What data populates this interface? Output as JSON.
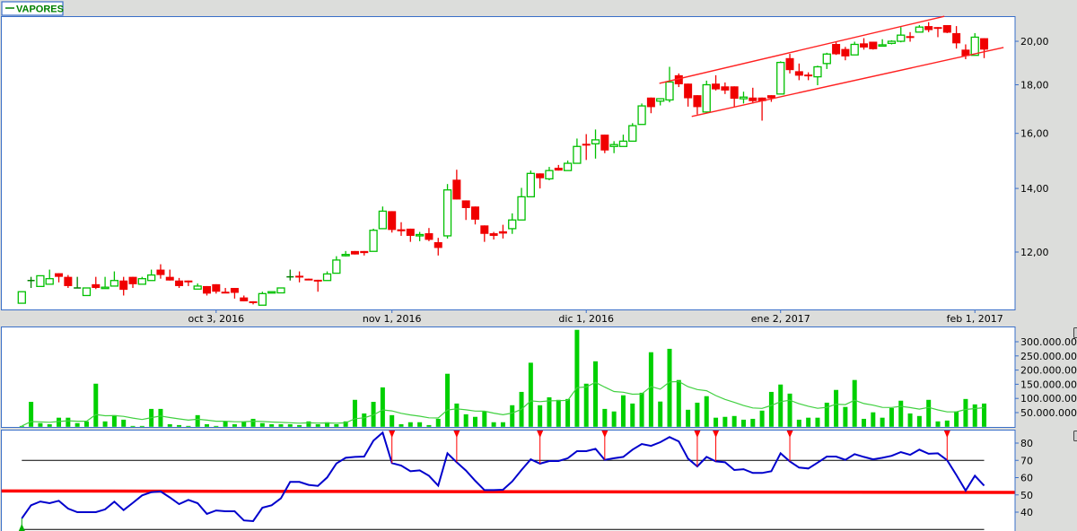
{
  "legend": {
    "label": "VAPORES",
    "color": "#008000"
  },
  "colors": {
    "up": "#00c000",
    "doji": "#008000",
    "down": "#f00000",
    "panel_border": "#3a6fc8",
    "background": "#dcdddb",
    "rsi_line": "#0000cc",
    "volume_bar": "#00d000",
    "volume_ma": "#40d040",
    "trendline": "#ff2020"
  },
  "chart_data": [
    {
      "type": "candlestick",
      "title": "",
      "y_scale": "log",
      "ylim": [
        10.4,
        21.3
      ],
      "grid": false,
      "legend": "top-left",
      "y_ticks": [
        {
          "value": 12,
          "label": "12,00"
        },
        {
          "value": 14,
          "label": "14,00"
        },
        {
          "value": 16,
          "label": "16,00"
        },
        {
          "value": 18,
          "label": "18,00"
        },
        {
          "value": 20,
          "label": "20,00"
        }
      ],
      "x_ticks": [
        {
          "bar": 22,
          "label": "oct 3, 2016"
        },
        {
          "bar": 41,
          "label": "nov 1, 2016"
        },
        {
          "bar": 62,
          "label": "dic 1, 2016"
        },
        {
          "bar": 83,
          "label": "ene 2, 2017"
        },
        {
          "bar": 104,
          "label": "feb 1, 2017"
        }
      ],
      "ohlc_fields": [
        "open",
        "high",
        "low",
        "close"
      ],
      "ohlc": [
        [
          10.6,
          10.9,
          10.6,
          10.9
        ],
        [
          11.2,
          11.3,
          11.0,
          11.2
        ],
        [
          11.04,
          11.33,
          11.04,
          11.33
        ],
        [
          11.1,
          11.5,
          11.1,
          11.25
        ],
        [
          11.4,
          11.4,
          11.15,
          11.3
        ],
        [
          11.3,
          11.35,
          11.0,
          11.05
        ],
        [
          11.0,
          11.3,
          11.0,
          11.0
        ],
        [
          10.8,
          11.0,
          10.8,
          11.0
        ],
        [
          11.1,
          11.3,
          10.97,
          11.0
        ],
        [
          11.0,
          11.3,
          11.0,
          11.02
        ],
        [
          11.05,
          11.45,
          11.05,
          11.2
        ],
        [
          11.2,
          11.3,
          10.8,
          10.95
        ],
        [
          11.3,
          11.3,
          11.0,
          11.1
        ],
        [
          11.1,
          11.3,
          11.1,
          11.25
        ],
        [
          11.2,
          11.5,
          11.2,
          11.35
        ],
        [
          11.5,
          11.65,
          11.25,
          11.35
        ],
        [
          11.3,
          11.5,
          11.2,
          11.2
        ],
        [
          11.2,
          11.27,
          11.0,
          11.05
        ],
        [
          11.2,
          11.2,
          11.05,
          11.15
        ],
        [
          10.97,
          11.12,
          10.97,
          11.05
        ],
        [
          11.05,
          11.05,
          10.8,
          10.85
        ],
        [
          11.1,
          11.1,
          10.85,
          10.9
        ],
        [
          10.9,
          11.0,
          10.87,
          10.87
        ],
        [
          11.0,
          11.0,
          10.72,
          10.87
        ],
        [
          10.75,
          10.8,
          10.65,
          10.65
        ],
        [
          10.65,
          10.65,
          10.57,
          10.62
        ],
        [
          10.55,
          10.9,
          10.55,
          10.85
        ],
        [
          10.87,
          10.9,
          10.87,
          10.9
        ],
        [
          10.87,
          11.0,
          10.87,
          11.0
        ],
        [
          11.3,
          11.5,
          11.2,
          11.3
        ],
        [
          11.33,
          11.45,
          11.15,
          11.3
        ],
        [
          11.25,
          11.25,
          11.22,
          11.22
        ],
        [
          11.22,
          11.22,
          10.9,
          11.2
        ],
        [
          11.2,
          11.45,
          11.2,
          11.38
        ],
        [
          11.4,
          11.88,
          11.4,
          11.77
        ],
        [
          11.9,
          12.03,
          11.87,
          11.93
        ],
        [
          12.03,
          12.03,
          11.93,
          11.93
        ],
        [
          12.03,
          12.03,
          11.9,
          11.97
        ],
        [
          12.02,
          12.7,
          12.02,
          12.65
        ],
        [
          12.7,
          13.4,
          12.7,
          13.25
        ],
        [
          13.25,
          13.25,
          12.58,
          12.66
        ],
        [
          12.68,
          12.9,
          12.48,
          12.62
        ],
        [
          12.7,
          12.7,
          12.3,
          12.48
        ],
        [
          12.48,
          12.6,
          12.32,
          12.52
        ],
        [
          12.56,
          12.72,
          12.32,
          12.36
        ],
        [
          12.29,
          12.42,
          11.9,
          12.12
        ],
        [
          12.48,
          14.15,
          12.4,
          13.95
        ],
        [
          14.3,
          14.65,
          13.63,
          13.63
        ],
        [
          13.6,
          13.6,
          12.97,
          13.35
        ],
        [
          13.4,
          13.4,
          12.83,
          12.98
        ],
        [
          12.8,
          12.8,
          12.3,
          12.54
        ],
        [
          12.56,
          12.6,
          12.37,
          12.48
        ],
        [
          12.62,
          12.82,
          12.4,
          12.55
        ],
        [
          12.7,
          13.18,
          12.54,
          12.97
        ],
        [
          12.97,
          14.02,
          12.97,
          13.72
        ],
        [
          13.72,
          14.62,
          13.72,
          14.52
        ],
        [
          14.52,
          14.52,
          14.0,
          14.35
        ],
        [
          14.33,
          14.75,
          14.28,
          14.62
        ],
        [
          14.72,
          14.82,
          14.62,
          14.62
        ],
        [
          14.62,
          14.98,
          14.62,
          14.88
        ],
        [
          14.88,
          15.8,
          14.88,
          15.5
        ],
        [
          15.6,
          15.97,
          15.0,
          15.55
        ],
        [
          15.6,
          16.15,
          15.05,
          15.75
        ],
        [
          15.95,
          15.95,
          15.25,
          15.35
        ],
        [
          15.5,
          15.7,
          15.25,
          15.57
        ],
        [
          15.5,
          15.95,
          15.5,
          15.7
        ],
        [
          15.7,
          16.4,
          15.7,
          16.3
        ],
        [
          16.35,
          17.2,
          16.35,
          17.1
        ],
        [
          17.45,
          17.45,
          16.8,
          17.05
        ],
        [
          17.3,
          17.4,
          17.12,
          17.4
        ],
        [
          17.35,
          18.8,
          17.25,
          18.12
        ],
        [
          18.42,
          18.5,
          17.9,
          18.02
        ],
        [
          18.05,
          18.05,
          17.07,
          17.42
        ],
        [
          17.55,
          17.55,
          16.75,
          17.05
        ],
        [
          16.85,
          18.18,
          16.85,
          18.0
        ],
        [
          18.05,
          18.42,
          17.75,
          17.8
        ],
        [
          17.93,
          18.1,
          17.6,
          17.75
        ],
        [
          17.93,
          17.93,
          17.07,
          17.4
        ],
        [
          17.4,
          17.7,
          17.2,
          17.47
        ],
        [
          17.45,
          17.87,
          17.2,
          17.3
        ],
        [
          17.45,
          17.45,
          16.5,
          17.3
        ],
        [
          17.55,
          17.55,
          17.27,
          17.42
        ],
        [
          17.6,
          19.05,
          17.6,
          19.0
        ],
        [
          19.2,
          19.4,
          18.5,
          18.65
        ],
        [
          18.6,
          18.95,
          18.2,
          18.4
        ],
        [
          18.45,
          18.55,
          18.2,
          18.4
        ],
        [
          18.35,
          18.85,
          17.98,
          18.8
        ],
        [
          18.95,
          19.45,
          18.7,
          19.39
        ],
        [
          19.87,
          19.98,
          19.35,
          19.38
        ],
        [
          19.63,
          19.73,
          19.1,
          19.28
        ],
        [
          19.35,
          19.98,
          19.35,
          19.85
        ],
        [
          19.9,
          20.15,
          19.6,
          19.7
        ],
        [
          19.98,
          19.98,
          19.6,
          19.62
        ],
        [
          19.78,
          20.1,
          19.76,
          19.83
        ],
        [
          19.9,
          20.05,
          19.85,
          20.0
        ],
        [
          20.0,
          20.7,
          19.95,
          20.3
        ],
        [
          20.25,
          20.45,
          19.98,
          20.2
        ],
        [
          20.45,
          20.8,
          20.45,
          20.7
        ],
        [
          20.75,
          20.95,
          20.45,
          20.55
        ],
        [
          20.7,
          20.7,
          20.2,
          20.65
        ],
        [
          20.8,
          20.8,
          20.4,
          20.42
        ],
        [
          20.4,
          20.75,
          19.65,
          19.9
        ],
        [
          19.6,
          19.85,
          19.15,
          19.3
        ],
        [
          19.33,
          20.4,
          19.33,
          20.2
        ],
        [
          20.15,
          20.15,
          19.2,
          19.6
        ]
      ],
      "trendlines": [
        {
          "from": {
            "bar": 69.9,
            "price": 18.06
          },
          "to": {
            "bar": 100.7,
            "price": 21.25
          }
        },
        {
          "from": {
            "bar": 73.4,
            "price": 16.67
          },
          "to": {
            "bar": 107.1,
            "price": 19.7
          }
        }
      ]
    },
    {
      "type": "bar",
      "title": "",
      "ylim": [
        0,
        345000000
      ],
      "y_ticks": [
        {
          "value": 50000000,
          "label": "50.000.000"
        },
        {
          "value": 100000000,
          "label": "100.000.000"
        },
        {
          "value": 150000000,
          "label": "150.000.000"
        },
        {
          "value": 200000000,
          "label": "200.000.000"
        },
        {
          "value": 250000000,
          "label": "250.000.000"
        },
        {
          "value": 300000000,
          "label": "300.000.000"
        }
      ],
      "moving_average_line": true,
      "values": [
        3000000,
        88000000,
        13000000,
        9000000,
        32000000,
        32000000,
        13000000,
        19000000,
        152000000,
        19000000,
        41000000,
        25000000,
        3000000,
        3000000,
        63000000,
        63000000,
        9000000,
        6000000,
        3000000,
        41000000,
        9000000,
        3000000,
        19000000,
        9000000,
        19000000,
        28000000,
        13000000,
        9000000,
        9000000,
        9000000,
        6000000,
        19000000,
        9000000,
        16000000,
        9000000,
        19000000,
        95000000,
        47000000,
        88000000,
        139000000,
        41000000,
        9000000,
        16000000,
        16000000,
        6000000,
        28000000,
        187000000,
        82000000,
        44000000,
        35000000,
        54000000,
        16000000,
        16000000,
        76000000,
        123000000,
        226000000,
        76000000,
        104000000,
        95000000,
        98000000,
        342000000,
        152000000,
        231000000,
        63000000,
        54000000,
        111000000,
        82000000,
        120000000,
        263000000,
        89000000,
        275000000,
        165000000,
        60000000,
        85000000,
        108000000,
        32000000,
        35000000,
        38000000,
        25000000,
        28000000,
        57000000,
        123000000,
        149000000,
        117000000,
        25000000,
        32000000,
        32000000,
        85000000,
        130000000,
        70000000,
        165000000,
        28000000,
        51000000,
        32000000,
        66000000,
        92000000,
        47000000,
        38000000,
        95000000,
        19000000,
        22000000,
        54000000,
        98000000,
        79000000,
        82000000
      ]
    },
    {
      "type": "line",
      "title": "",
      "ylim": [
        29,
        89
      ],
      "y_ticks": [
        {
          "value": 40,
          "label": "40"
        },
        {
          "value": 50,
          "label": "50"
        },
        {
          "value": 60,
          "label": "60"
        },
        {
          "value": 70,
          "label": "70"
        },
        {
          "value": 80,
          "label": "80"
        }
      ],
      "levels": [
        70,
        30
      ],
      "values": [
        36.4,
        44.0,
        46.2,
        45.2,
        46.6,
        42.1,
        40.0,
        40.0,
        40.0,
        41.6,
        46.1,
        41.2,
        45.4,
        49.7,
        51.6,
        52.0,
        48.5,
        44.7,
        47.1,
        45.2,
        39.0,
        41.0,
        40.5,
        40.5,
        35.2,
        34.8,
        42.6,
        44.0,
        48.0,
        57.5,
        57.5,
        55.8,
        55.2,
        60.1,
        68.2,
        71.5,
        72.0,
        72.2,
        81.4,
        86.1,
        68.4,
        67.0,
        63.7,
        64.2,
        61.1,
        55.4,
        74.1,
        68.9,
        64.1,
        58.2,
        52.8,
        52.8,
        53.0,
        57.8,
        64.4,
        70.6,
        68.1,
        69.6,
        69.6,
        71.2,
        75.3,
        75.3,
        76.7,
        70.3,
        71.2,
        72.0,
        76.2,
        79.5,
        78.4,
        80.5,
        83.5,
        81.0,
        71.0,
        66.5,
        72.0,
        69.4,
        68.9,
        64.4,
        64.9,
        62.7,
        62.7,
        63.7,
        74.1,
        69.4,
        65.8,
        65.3,
        68.7,
        72.2,
        72.2,
        70.3,
        73.6,
        72.0,
        70.6,
        71.5,
        72.6,
        74.8,
        73.2,
        76.2,
        73.8,
        74.1,
        70.1,
        61.5,
        52.5,
        61.1,
        55.4
      ],
      "sell_signals": [
        41,
        48,
        57,
        64,
        74,
        76,
        84,
        101
      ],
      "buy_signals": [
        1
      ],
      "trendline": {
        "from": {
          "bar": -1.2,
          "value": 52.3
        },
        "to": {
          "bar": 108.3,
          "value": 51.4
        }
      }
    }
  ]
}
